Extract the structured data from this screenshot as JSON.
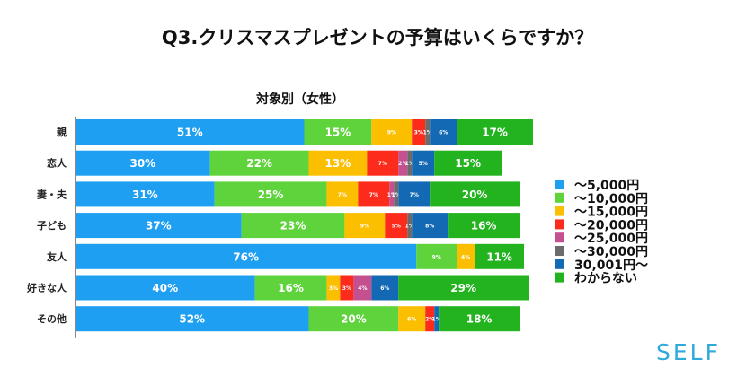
{
  "title": "Q3.クリスマスプレゼントの予算はいくらですか？",
  "chart_data": {
    "type": "bar",
    "orientation": "horizontal",
    "stacked": true,
    "percent_stacked": true,
    "title": "Q3.クリスマスプレゼントの予算はいくらですか？",
    "subtitle": "対象別（女性）",
    "categories": [
      "親",
      "恋人",
      "妻・夫",
      "子ども",
      "友人",
      "好きな人",
      "その他"
    ],
    "series": [
      {
        "name": "〜5,000円",
        "color": "#1e9ff2",
        "values": [
          51,
          30,
          31,
          37,
          76,
          40,
          52
        ]
      },
      {
        "name": "〜10,000円",
        "color": "#5fd33b",
        "values": [
          15,
          22,
          25,
          23,
          9,
          16,
          20
        ]
      },
      {
        "name": "〜15,000円",
        "color": "#fcbf00",
        "values": [
          9,
          13,
          7,
          9,
          4,
          3,
          6
        ]
      },
      {
        "name": "〜20,000円",
        "color": "#fc2b1c",
        "values": [
          3,
          7,
          7,
          5,
          0,
          3,
          2
        ]
      },
      {
        "name": "〜25,000円",
        "color": "#c4508f",
        "values": [
          0,
          2,
          1,
          0,
          0,
          4,
          0
        ]
      },
      {
        "name": "〜30,000円",
        "color": "#6b6b6b",
        "values": [
          1,
          1,
          1,
          1,
          0,
          0,
          0
        ]
      },
      {
        "name": "30,001円〜",
        "color": "#1469b4",
        "values": [
          6,
          5,
          7,
          8,
          0,
          6,
          1
        ]
      },
      {
        "name": "わからない",
        "color": "#22b31f",
        "values": [
          17,
          15,
          20,
          16,
          11,
          29,
          18
        ]
      }
    ],
    "data_labels": [
      [
        "51%",
        "15%",
        "9%",
        "3%",
        "",
        "1%",
        "6%",
        "17%"
      ],
      [
        "30%",
        "22%",
        "13%",
        "7%",
        "2%",
        "1%",
        "5%",
        "15%"
      ],
      [
        "31%",
        "25%",
        "7%",
        "7%",
        "1%",
        "1%",
        "7%",
        "20%"
      ],
      [
        "37%",
        "23%",
        "9%",
        "5%",
        "",
        "1%",
        "8%",
        "16%"
      ],
      [
        "76%",
        "9%",
        "4%",
        "",
        "",
        "",
        "",
        "11%"
      ],
      [
        "40%",
        "16%",
        "3%",
        "3%",
        "4%",
        "",
        "6%",
        "29%"
      ],
      [
        "52%",
        "20%",
        "6%",
        "2%",
        "",
        "",
        "1%",
        "18%"
      ]
    ],
    "xlim": [
      0,
      100
    ],
    "grid": false,
    "legend_position": "right"
  },
  "logo": "SELF"
}
